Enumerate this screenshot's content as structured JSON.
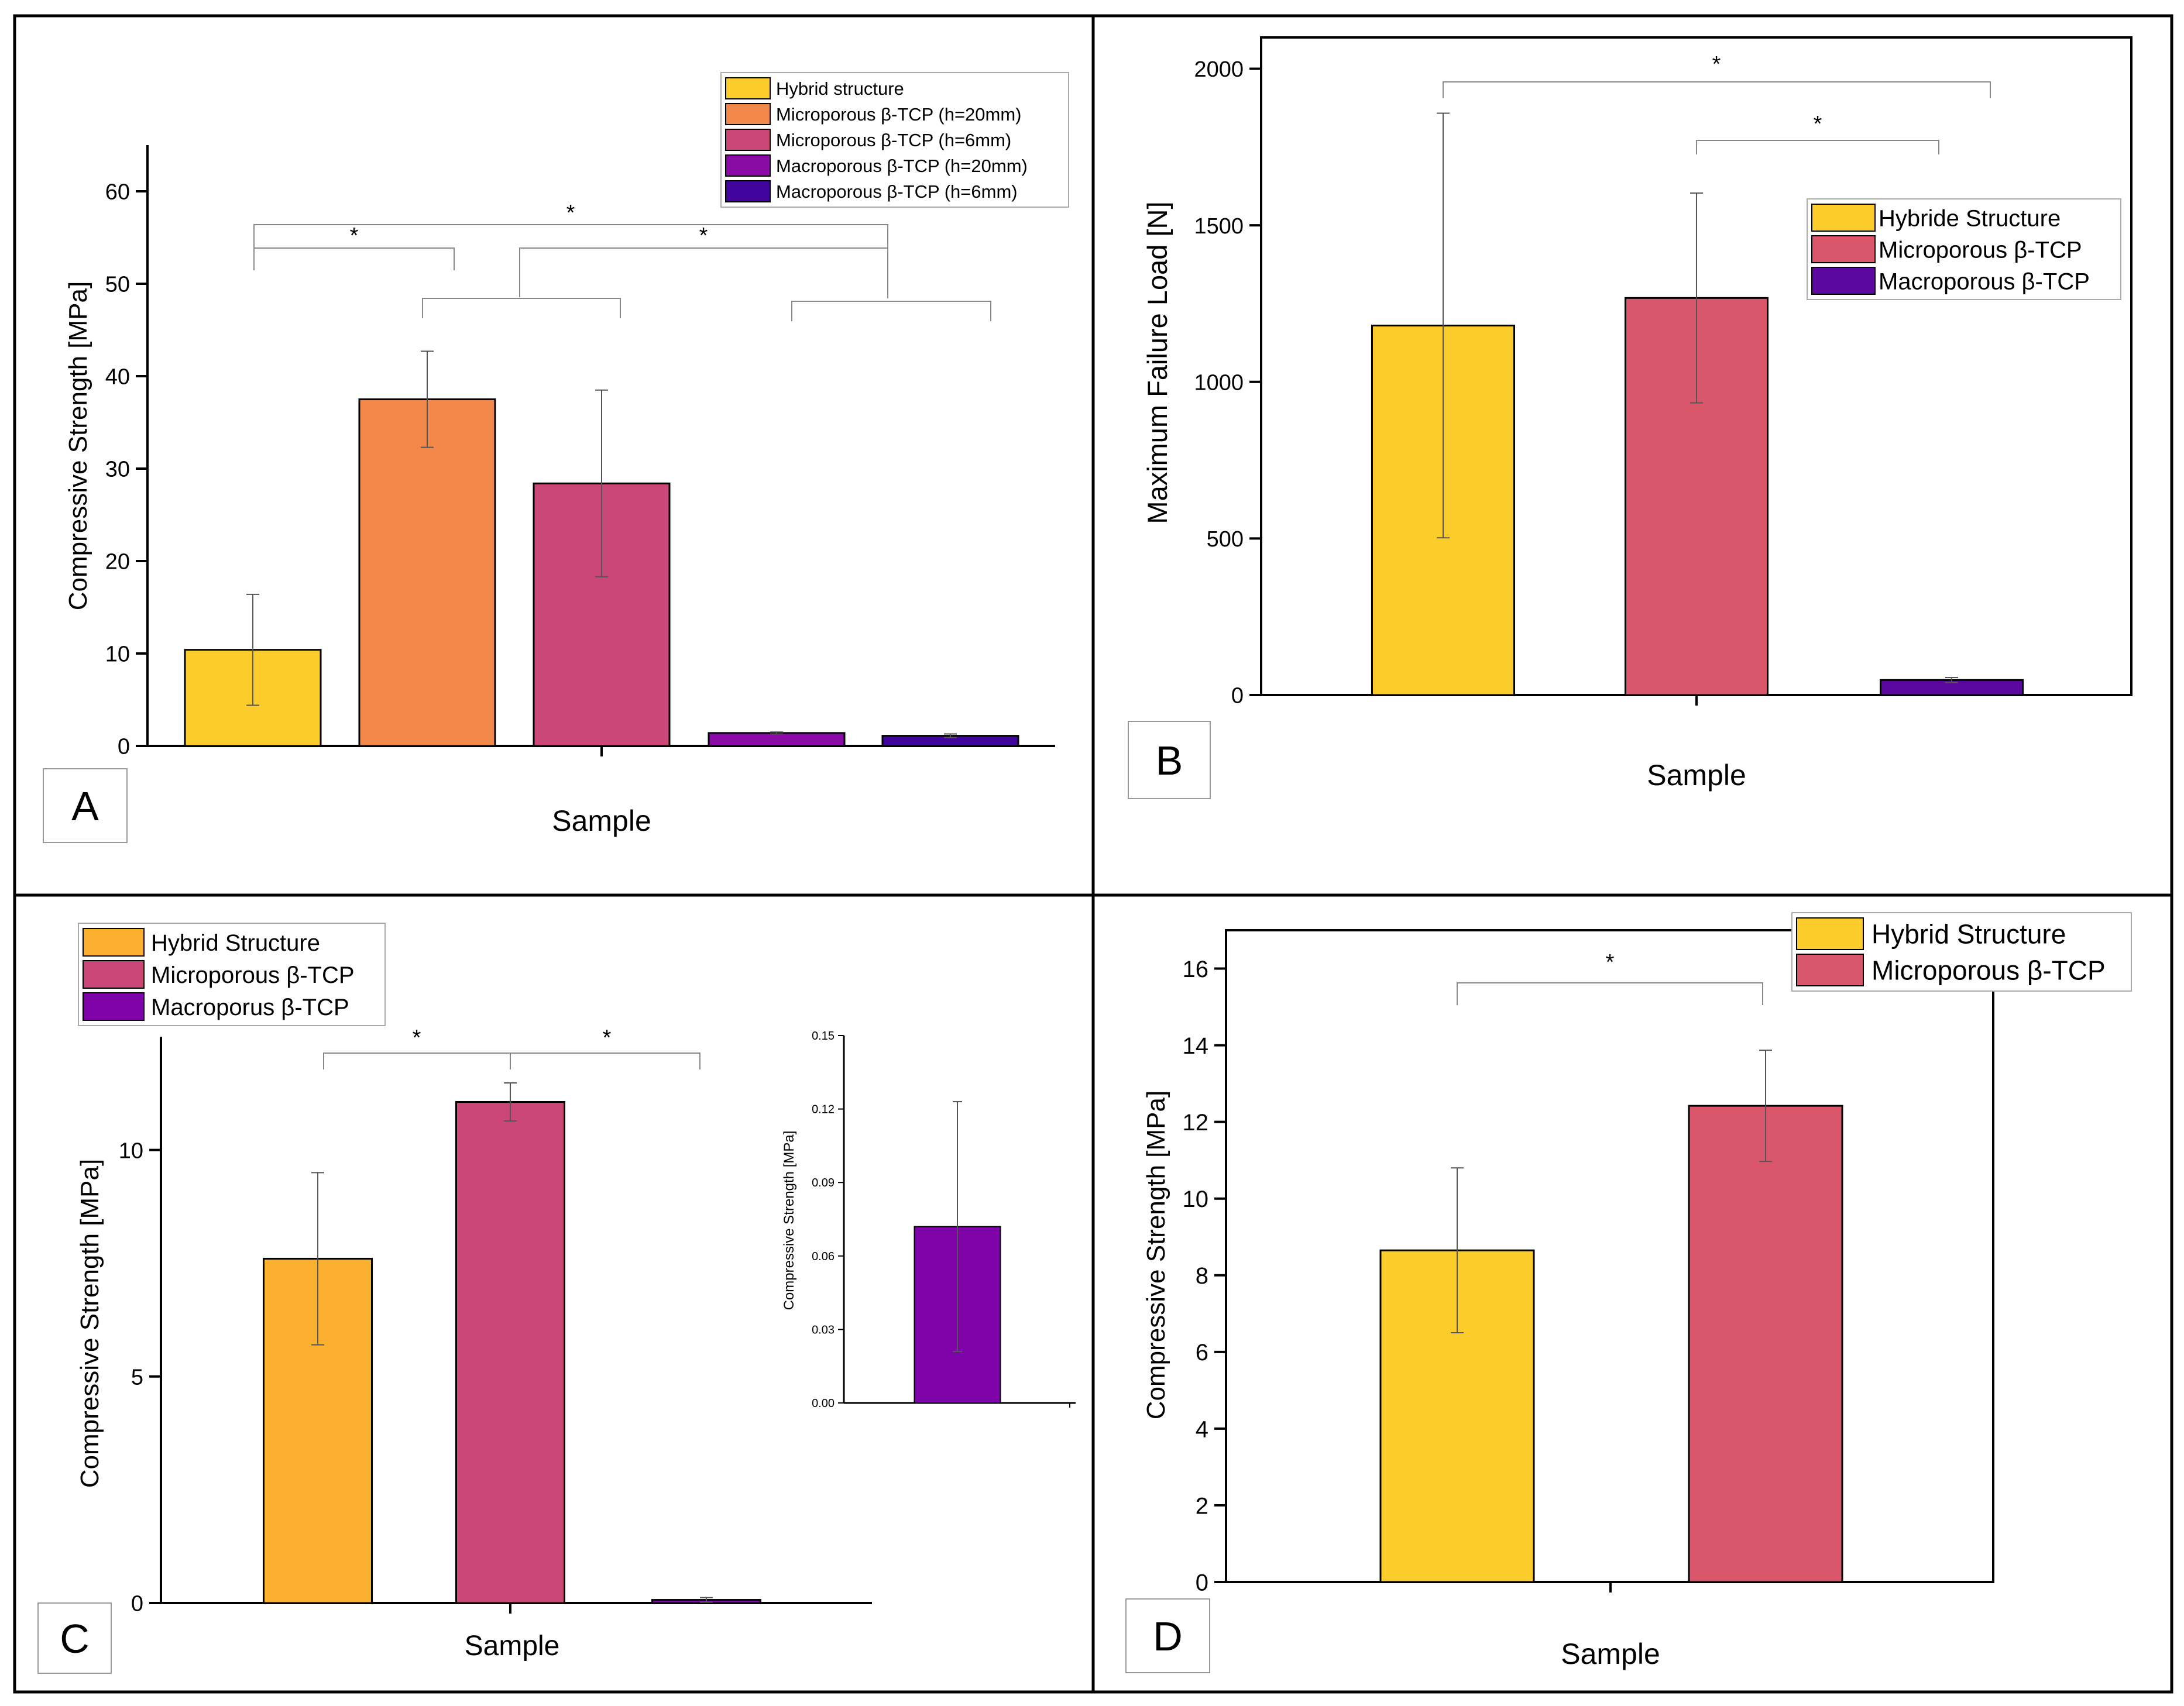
{
  "chart_data": [
    {
      "panel": "A",
      "type": "bar",
      "xlabel": "Sample",
      "ylabel": "Compressive Strength [MPa]",
      "ylim": [
        0,
        65
      ],
      "yticks": [
        0,
        10,
        20,
        30,
        40,
        50,
        60
      ],
      "categories": [
        "Hybrid structure",
        "Microporous β-TCP (h=20mm)",
        "Microporous β-TCP (h=6mm)",
        "Macroporous β-TCP (h=20mm)",
        "Macroporous β-TCP (h=6mm)"
      ],
      "values": [
        10.4,
        37.5,
        28.4,
        1.4,
        1.1
      ],
      "errors": [
        6.0,
        5.2,
        10.1,
        0.1,
        0.2
      ],
      "colors": [
        "#fbcc2a",
        "#f3884b",
        "#cb4778",
        "#8a0aa5",
        "#41049d"
      ],
      "legend": [
        "Hybrid structure",
        "Microporous β-TCP (h=20mm)",
        "Microporous β-TCP (h=6mm)",
        "Macroporous β-TCP (h=20mm)",
        "Macroporous β-TCP (h=6mm)"
      ],
      "legend_position": "top-right",
      "annotations": [
        "*",
        "*",
        "*"
      ]
    },
    {
      "panel": "B",
      "type": "bar",
      "xlabel": "Sample",
      "ylabel": "Maximum Failure Load [N]",
      "ylim": [
        0,
        2100
      ],
      "yticks": [
        0,
        500,
        1000,
        1500,
        2000
      ],
      "categories": [
        "Hybride Structure",
        "Microporous β-TCP",
        "Macroporous β-TCP"
      ],
      "values": [
        1180,
        1268,
        48
      ],
      "errors": [
        678,
        335,
        8
      ],
      "colors": [
        "#fbcc2a",
        "#d9566b",
        "#5c079e"
      ],
      "legend": [
        "Hybride Structure",
        "Microporous β-TCP",
        "Macroporous β-TCP"
      ],
      "legend_position": "top-right",
      "annotations": [
        "*",
        "*"
      ]
    },
    {
      "panel": "C",
      "type": "bar",
      "xlabel": "Sample",
      "ylabel": "Compressive Strength [MPa]",
      "ylim": [
        0,
        12.5
      ],
      "yticks": [
        0,
        5,
        10
      ],
      "categories": [
        "Hybrid Structure",
        "Microporous β-TCP",
        "Macroporus β-TCP"
      ],
      "values": [
        7.6,
        11.06,
        0.07
      ],
      "errors": [
        1.9,
        0.42,
        0.05
      ],
      "colors": [
        "#fbb12f",
        "#cb4778",
        "#7e03a8"
      ],
      "legend": [
        "Hybrid Structure",
        "Microporous β-TCP",
        "Macroporus β-TCP"
      ],
      "legend_position": "top-left",
      "annotations": [
        "*",
        "*"
      ],
      "inset": {
        "ylabel": "Compressive Strength [MPa]",
        "ylim": [
          0,
          0.15
        ],
        "yticks": [
          "0.00",
          "0.03",
          "0.06",
          "0.09",
          "0.12",
          "0.15"
        ],
        "value": 0.072,
        "error": 0.051,
        "color": "#7e03a8"
      }
    },
    {
      "panel": "D",
      "type": "bar",
      "xlabel": "Sample",
      "ylabel": "Compressive Strength [MPa]",
      "ylim": [
        0,
        17
      ],
      "yticks": [
        0,
        2,
        4,
        6,
        8,
        10,
        12,
        14,
        16
      ],
      "categories": [
        "Hybrid Structure",
        "Microporous β-TCP"
      ],
      "values": [
        8.65,
        12.42
      ],
      "errors": [
        2.15,
        1.45
      ],
      "colors": [
        "#fbcc2a",
        "#d9566b"
      ],
      "legend": [
        "Hybrid Structure",
        "Microporous β-TCP"
      ],
      "legend_position": "top-right",
      "annotations": [
        "*"
      ]
    }
  ],
  "panel_labels": [
    "A",
    "B",
    "C",
    "D"
  ]
}
